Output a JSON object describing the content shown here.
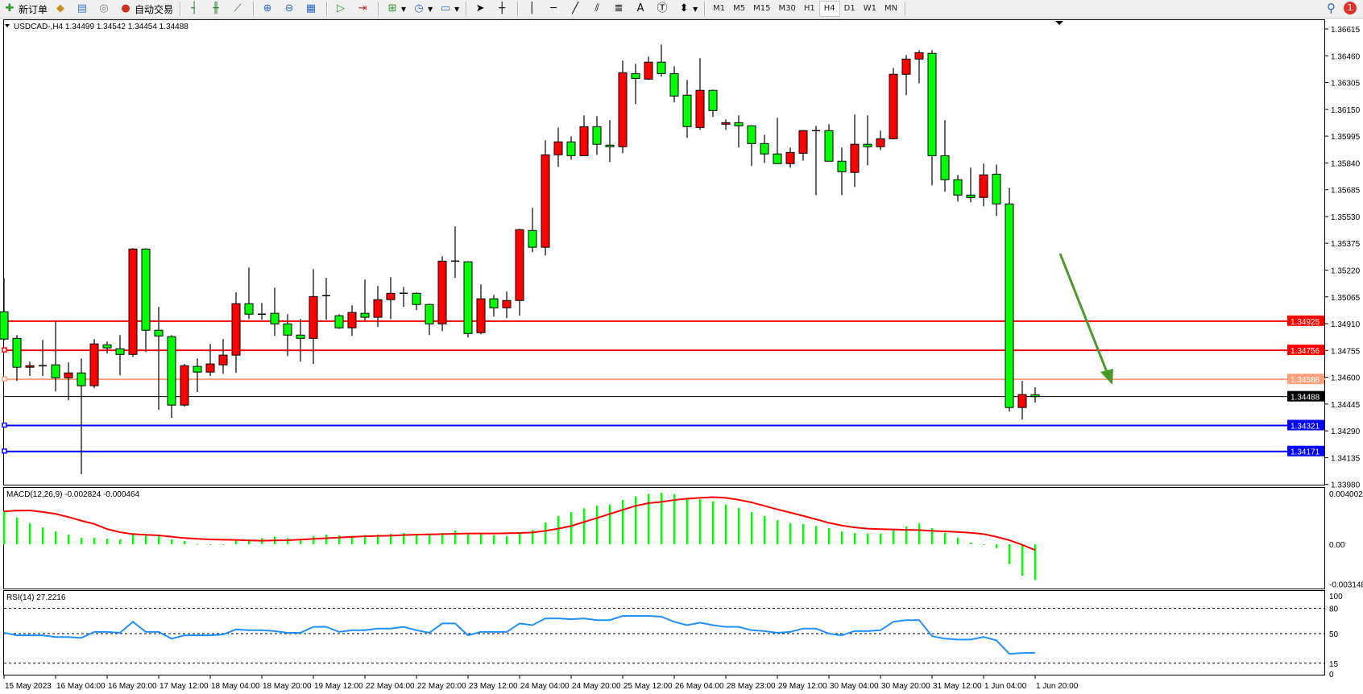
{
  "toolbar": {
    "new_order": "新订单",
    "auto_trading": "自动交易",
    "timeframes": [
      "M1",
      "M5",
      "M15",
      "M30",
      "H1",
      "H4",
      "D1",
      "W1",
      "MN"
    ],
    "active_timeframe": "H4",
    "notification_count": "1",
    "icons": [
      "new-order-icon",
      "market-watch-icon",
      "navigator-icon",
      "signals-icon",
      "auto-trading-icon",
      "bar-chart-icon",
      "candle-chart-icon",
      "line-chart-icon",
      "zoom-in-icon",
      "zoom-out-icon",
      "tile-windows-icon",
      "autoscroll-icon",
      "chart-shift-icon",
      "indicators-icon",
      "periods-icon",
      "templates-icon",
      "cursor-icon",
      "crosshair-icon",
      "vertical-line-icon",
      "horizontal-line-icon",
      "trendline-icon",
      "equidistant-channel-icon",
      "fibonacci-icon",
      "text-icon",
      "text-label-icon",
      "arrows-icon",
      "search-icon",
      "notification-icon"
    ]
  },
  "chart": {
    "header": "USDCAD-,H4  1.34499 1.34542 1.34454 1.34488",
    "symbol": "USDCAD-",
    "timeframe": "H4",
    "bull_color": "#ff0000",
    "bear_color": "#00ff00",
    "price_labels": [
      "1.36615",
      "1.36460",
      "1.36305",
      "1.36150",
      "1.35995",
      "1.35840",
      "1.35685",
      "1.35530",
      "1.35375",
      "1.35220",
      "1.35065",
      "1.34910",
      "1.34755",
      "1.34600",
      "1.34445",
      "1.34290",
      "1.34135",
      "1.33980"
    ],
    "price_range": [
      1.3398,
      1.36615
    ],
    "hlines": [
      {
        "price": 1.34925,
        "label": "1.34925",
        "color": "#ff0000"
      },
      {
        "price": 1.34756,
        "label": "1.34756",
        "color": "#ff0000"
      },
      {
        "price": 1.34588,
        "label": "1.34588",
        "color": "#ffa07a"
      },
      {
        "price": 1.34321,
        "label": "1.34321",
        "color": "#0000ff"
      },
      {
        "price": 1.34171,
        "label": "1.34171",
        "color": "#0000ff"
      }
    ],
    "bid": {
      "price": 1.34488,
      "label": "1.34488",
      "color": "#000000"
    },
    "arrow_color": "#4a9a2a",
    "candles": [
      [
        1.34979,
        1.35175,
        1.34812,
        1.34821
      ],
      [
        1.34825,
        1.34844,
        1.34579,
        1.34658
      ],
      [
        1.34658,
        1.3469,
        1.34607,
        1.34667
      ],
      [
        1.34667,
        1.34816,
        1.34607,
        1.34667
      ],
      [
        1.34672,
        1.34923,
        1.34518,
        1.34597
      ],
      [
        1.34597,
        1.34686,
        1.34467,
        1.34625
      ],
      [
        1.34625,
        1.34709,
        1.34039,
        1.34551
      ],
      [
        1.34551,
        1.34821,
        1.34537,
        1.34793
      ],
      [
        1.34788,
        1.34807,
        1.34737,
        1.3477
      ],
      [
        1.34765,
        1.34844,
        1.34611,
        1.34732
      ],
      [
        1.34732,
        1.35347,
        1.34718,
        1.35342
      ],
      [
        1.35342,
        1.35347,
        1.34746,
        1.34872
      ],
      [
        1.34872,
        1.35007,
        1.34411,
        1.34839
      ],
      [
        1.34835,
        1.34844,
        1.34365,
        1.34439
      ],
      [
        1.34439,
        1.34677,
        1.3443,
        1.34667
      ],
      [
        1.34663,
        1.34709,
        1.34514,
        1.3463
      ],
      [
        1.3463,
        1.34793,
        1.34607,
        1.34677
      ],
      [
        1.34672,
        1.34821,
        1.3462,
        1.34728
      ],
      [
        1.34728,
        1.35091,
        1.34625,
        1.35026
      ],
      [
        1.35026,
        1.35235,
        1.34937,
        1.34965
      ],
      [
        1.34965,
        1.3503,
        1.34933,
        1.34965
      ],
      [
        1.3497,
        1.35119,
        1.34839,
        1.34909
      ],
      [
        1.34909,
        1.34965,
        1.34723,
        1.34844
      ],
      [
        1.34844,
        1.34937,
        1.3469,
        1.34825
      ],
      [
        1.34825,
        1.35226,
        1.34677,
        1.35067
      ],
      [
        1.35072,
        1.35175,
        1.34933,
        1.35072
      ],
      [
        1.34956,
        1.34965,
        1.3488,
        1.34886
      ],
      [
        1.34886,
        1.35016,
        1.34839,
        1.34975
      ],
      [
        1.3497,
        1.35165,
        1.34928,
        1.34947
      ],
      [
        1.34947,
        1.35128,
        1.34891,
        1.35049
      ],
      [
        1.35049,
        1.35179,
        1.34937,
        1.35086
      ],
      [
        1.35086,
        1.35123,
        1.35007,
        1.35086
      ],
      [
        1.35086,
        1.35091,
        1.34988,
        1.35021
      ],
      [
        1.35021,
        1.35026,
        1.34844,
        1.34909
      ],
      [
        1.34909,
        1.353,
        1.34867,
        1.35272
      ],
      [
        1.35272,
        1.35473,
        1.35175,
        1.35272
      ],
      [
        1.35268,
        1.35272,
        1.3483,
        1.34853
      ],
      [
        1.34858,
        1.35137,
        1.34849,
        1.35054
      ],
      [
        1.35054,
        1.35077,
        1.34951,
        1.35002
      ],
      [
        1.35002,
        1.35096,
        1.34942,
        1.35044
      ],
      [
        1.35044,
        1.35459,
        1.34956,
        1.35454
      ],
      [
        1.35449,
        1.3558,
        1.35324,
        1.35352
      ],
      [
        1.35352,
        1.35971,
        1.35305,
        1.35887
      ],
      [
        1.35887,
        1.36045,
        1.35817,
        1.35962
      ],
      [
        1.35962,
        1.35994,
        1.35859,
        1.35882
      ],
      [
        1.35882,
        1.36115,
        1.35882,
        1.3605
      ],
      [
        1.3605,
        1.36111,
        1.35887,
        1.35948
      ],
      [
        1.35943,
        1.36087,
        1.35845,
        1.35934
      ],
      [
        1.35934,
        1.36432,
        1.35896,
        1.36362
      ],
      [
        1.36357,
        1.36413,
        1.3618,
        1.36329
      ],
      [
        1.36325,
        1.36455,
        1.3632,
        1.36423
      ],
      [
        1.36423,
        1.36525,
        1.36339,
        1.36357
      ],
      [
        1.36357,
        1.36399,
        1.3619,
        1.36227
      ],
      [
        1.36232,
        1.3632,
        1.35985,
        1.3605
      ],
      [
        1.36045,
        1.36446,
        1.36031,
        1.3626
      ],
      [
        1.3626,
        1.36264,
        1.36106,
        1.36143
      ],
      [
        1.36064,
        1.36092,
        1.36031,
        1.36073
      ],
      [
        1.36073,
        1.36115,
        1.35929,
        1.36055
      ],
      [
        1.36055,
        1.36059,
        1.35822,
        1.35952
      ],
      [
        1.35952,
        1.36003,
        1.3584,
        1.35892
      ],
      [
        1.35892,
        1.36101,
        1.35836,
        1.35836
      ],
      [
        1.35836,
        1.35929,
        1.35813,
        1.35901
      ],
      [
        1.35896,
        1.36031,
        1.35854,
        1.36027
      ],
      [
        1.36027,
        1.36055,
        1.35654,
        1.36027
      ],
      [
        1.36027,
        1.36064,
        1.3585,
        1.3585
      ],
      [
        1.3585,
        1.35929,
        1.35654,
        1.35789
      ],
      [
        1.35785,
        1.3612,
        1.35701,
        1.35948
      ],
      [
        1.35948,
        1.36115,
        1.35826,
        1.35934
      ],
      [
        1.35934,
        1.36027,
        1.35915,
        1.3598
      ],
      [
        1.3598,
        1.3639,
        1.35976,
        1.36353
      ],
      [
        1.36353,
        1.36464,
        1.36232,
        1.36441
      ],
      [
        1.36441,
        1.36492,
        1.36301,
        1.36478
      ],
      [
        1.36474,
        1.36492,
        1.3571,
        1.35882
      ],
      [
        1.35882,
        1.36087,
        1.35673,
        1.35743
      ],
      [
        1.35743,
        1.35771,
        1.35617,
        1.35654
      ],
      [
        1.35654,
        1.35813,
        1.35612,
        1.3564
      ],
      [
        1.3564,
        1.35836,
        1.35589,
        1.35771
      ],
      [
        1.35775,
        1.35831,
        1.35533,
        1.35603
      ],
      [
        1.35603,
        1.35696,
        1.34402,
        1.34425
      ],
      [
        1.34425,
        1.34579,
        1.34355,
        1.345
      ],
      [
        1.34499,
        1.34542,
        1.34454,
        1.34488
      ]
    ],
    "time_labels": [
      {
        "bar": 0,
        "label": "15 May 2023"
      },
      {
        "bar": 4,
        "label": "16 May 04:00"
      },
      {
        "bar": 8,
        "label": "16 May 20:00"
      },
      {
        "bar": 12,
        "label": "17 May 12:00"
      },
      {
        "bar": 16,
        "label": "18 May 04:00"
      },
      {
        "bar": 20,
        "label": "18 May 20:00"
      },
      {
        "bar": 24,
        "label": "19 May 12:00"
      },
      {
        "bar": 28,
        "label": "22 May 04:00"
      },
      {
        "bar": 32,
        "label": "22 May 20:00"
      },
      {
        "bar": 36,
        "label": "23 May 12:00"
      },
      {
        "bar": 40,
        "label": "24 May 04:00"
      },
      {
        "bar": 44,
        "label": "24 May 20:00"
      },
      {
        "bar": 48,
        "label": "25 May 12:00"
      },
      {
        "bar": 52,
        "label": "26 May 04:00"
      },
      {
        "bar": 56,
        "label": "28 May 23:00"
      },
      {
        "bar": 60,
        "label": "29 May 12:00"
      },
      {
        "bar": 64,
        "label": "30 May 04:00"
      },
      {
        "bar": 68,
        "label": "30 May 20:00"
      },
      {
        "bar": 72,
        "label": "31 May 12:00"
      },
      {
        "bar": 76,
        "label": "1 Jun 04:00"
      },
      {
        "bar": 80,
        "label": "1 Jun 20:00"
      }
    ]
  },
  "macd": {
    "header": "MACD(12,26,9) -0.002824 -0.000464",
    "axis_labels": [
      "0.004002",
      "0.00",
      "-0.003148"
    ],
    "range": [
      -0.003148,
      0.004002
    ],
    "hist_color": "#00ff00",
    "signal_color": "#ff0000",
    "histogram": [
      0.0026,
      0.0021,
      0.00165,
      0.00133,
      0.00102,
      0.00076,
      0.00051,
      0.00051,
      0.00044,
      0.00038,
      0.0008,
      0.00076,
      0.00068,
      0.00038,
      0.00025,
      4e-05,
      -1e-05,
      -2e-05,
      0.00032,
      0.00038,
      0.00049,
      0.00059,
      0.00049,
      0.00044,
      0.00063,
      0.00076,
      0.0007,
      0.00068,
      0.00074,
      0.00076,
      0.00083,
      0.00089,
      0.00076,
      0.00074,
      0.00089,
      0.00108,
      0.00087,
      0.00085,
      0.0007,
      0.00063,
      0.00095,
      0.00114,
      0.00171,
      0.00222,
      0.00254,
      0.00284,
      0.00305,
      0.00313,
      0.00349,
      0.00377,
      0.00398,
      0.00406,
      0.00396,
      0.00366,
      0.00356,
      0.00339,
      0.00313,
      0.00286,
      0.00254,
      0.00222,
      0.0019,
      0.00165,
      0.00159,
      0.00144,
      0.00127,
      0.00102,
      0.00089,
      0.00085,
      0.00085,
      0.00112,
      0.0014,
      0.00165,
      0.00127,
      0.00091,
      0.00053,
      0.00013,
      -2e-05,
      -0.0003,
      -0.00157,
      -0.00248,
      -0.002824
    ],
    "signal": [
      0.0026,
      0.00265,
      0.00267,
      0.00255,
      0.0024,
      0.00215,
      0.00186,
      0.0016,
      0.0012,
      0.00095,
      0.0008,
      0.00075,
      0.0007,
      0.0006,
      0.00049,
      0.00043,
      0.00038,
      0.00036,
      0.00034,
      0.0003,
      0.00028,
      0.0003,
      0.00032,
      0.00037,
      0.00042,
      0.00048,
      0.00053,
      0.00058,
      0.00063,
      0.00066,
      0.00068,
      0.00072,
      0.00076,
      0.00078,
      0.0008,
      0.00083,
      0.00085,
      0.00085,
      0.00085,
      0.00087,
      0.00089,
      0.00093,
      0.00106,
      0.00123,
      0.00144,
      0.00176,
      0.00207,
      0.00239,
      0.00271,
      0.00303,
      0.00324,
      0.00334,
      0.00349,
      0.0036,
      0.00366,
      0.00372,
      0.00366,
      0.00351,
      0.0033,
      0.00303,
      0.00275,
      0.0025,
      0.00224,
      0.00197,
      0.00169,
      0.00148,
      0.00133,
      0.00123,
      0.00119,
      0.00117,
      0.00114,
      0.00112,
      0.00106,
      0.00102,
      0.00097,
      0.00091,
      0.0008,
      0.00059,
      0.00032,
      -4e-05,
      -0.000464
    ]
  },
  "rsi": {
    "header": "RSI(14) 27.2216",
    "levels": [
      80,
      50,
      15
    ],
    "axis_labels": [
      "100",
      "80",
      "50",
      "15",
      "0"
    ],
    "color": "#1e90ff",
    "values": [
      51,
      48,
      48,
      48,
      46,
      46,
      45,
      52,
      52,
      51,
      64,
      52,
      52,
      44,
      48,
      48,
      48,
      49,
      55,
      54,
      54,
      53,
      51,
      51,
      58,
      58,
      52,
      54,
      54,
      56,
      56,
      58,
      54,
      51,
      62,
      62,
      48,
      52,
      52,
      52,
      62,
      60,
      68,
      68,
      67,
      68,
      66,
      66,
      71,
      71,
      71,
      70,
      64,
      60,
      63,
      60,
      58,
      58,
      54,
      53,
      51,
      52,
      56,
      56,
      50,
      48,
      53,
      53,
      54,
      64,
      66,
      66,
      47,
      44,
      43,
      43,
      46,
      42,
      26,
      27,
      27.2216
    ]
  }
}
